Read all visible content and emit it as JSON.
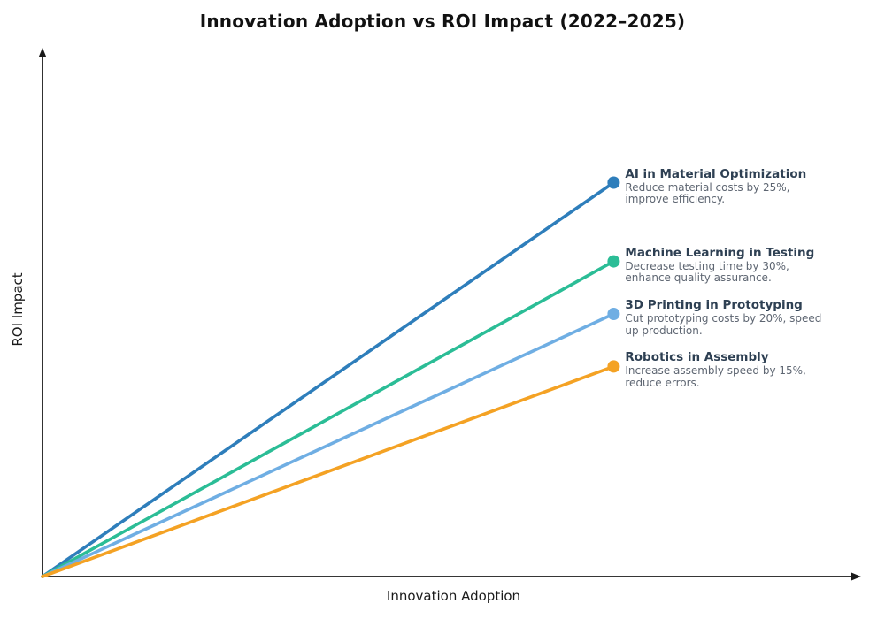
{
  "chart_data": {
    "type": "line",
    "title": "Innovation Adoption vs ROI Impact (2022–2025)",
    "xlabel": "Innovation Adoption",
    "ylabel": "ROI Impact",
    "xlim": [
      0,
      1
    ],
    "ylim": [
      0,
      1
    ],
    "grid": false,
    "ticks": "none",
    "axes_color": "#1a1a1a",
    "legend_position": "inline endpoint labels, right of line ends",
    "x": [
      0,
      0.7
    ],
    "series": [
      {
        "name": "AI in Material Optimization",
        "values": [
          0,
          0.75
        ],
        "color": "#2E7EBB",
        "description_lines": [
          "Reduce material costs by 25%,",
          "improve efficiency."
        ]
      },
      {
        "name": "Machine Learning in Testing",
        "values": [
          0,
          0.6
        ],
        "color": "#2BBD96",
        "description_lines": [
          "Decrease testing time by 30%,",
          "enhance quality assurance."
        ]
      },
      {
        "name": "3D Printing in Prototyping",
        "values": [
          0,
          0.5
        ],
        "color": "#6FAEE3",
        "description_lines": [
          "Cut prototyping costs by 20%, speed",
          "up production."
        ]
      },
      {
        "name": "Robotics in Assembly",
        "values": [
          0,
          0.4
        ],
        "color": "#F4A224",
        "description_lines": [
          "Increase assembly speed by 15%,",
          "reduce errors."
        ]
      }
    ],
    "label_title_color": "#2E4053",
    "label_desc_color": "#5E6672"
  }
}
